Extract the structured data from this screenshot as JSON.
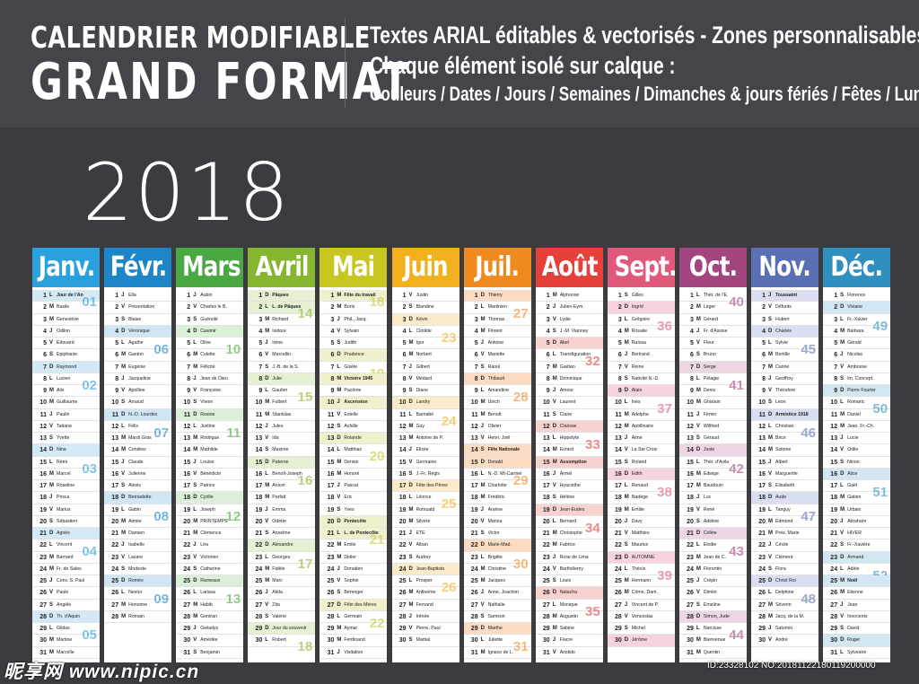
{
  "header": {
    "line1": "CALENDRIER MODIFIABLE",
    "line2": "GRAND FORMAT",
    "right1": "Textes ARIAL éditables & vectorisés  -  Zones personnalisables",
    "right2": "Chaque élément isolé sur calque :",
    "right3": "Couleurs / Dates / Jours / Semaines / Dimanches & jours fériés / Fêtes / Lunes"
  },
  "year": "2018",
  "watermark_left": "昵享网 www.nipic.cn",
  "watermark_right": "ID:23328102 NO:20181122180119200000",
  "months": [
    {
      "name": "Janv.",
      "color": "#2aa0dc",
      "light": "#d3eaf6",
      "start": 1,
      "days": 31,
      "sundays": [
        7,
        14,
        21,
        28
      ],
      "weeks": {
        "1": "01",
        "8": "02",
        "15": "03",
        "22": "04",
        "29": "05"
      },
      "saints": {
        "1": "Jour de l'An",
        "2": "Basile",
        "3": "Geneviève",
        "4": "Odilon",
        "5": "Edouard",
        "6": "Epiphanie",
        "7": "Raymond",
        "8": "Lucien",
        "9": "Alix",
        "10": "Guillaume",
        "11": "Paulin",
        "12": "Tatiana",
        "13": "Yvette",
        "14": "Nina",
        "15": "Rémi",
        "16": "Marcel",
        "17": "Roseline",
        "18": "Prisca",
        "19": "Marius",
        "20": "Sébastien",
        "21": "Agnès",
        "22": "Vincent",
        "23": "Barnard",
        "24": "Fr. de Sales",
        "25": "Conv. S. Paul",
        "26": "Paule",
        "27": "Angèle",
        "28": "Th. d'Aquin",
        "29": "Gildas",
        "30": "Martine",
        "31": "Marcelle"
      }
    },
    {
      "name": "Févr.",
      "color": "#1d86c9",
      "light": "#d1e6f3",
      "start": 4,
      "days": 28,
      "sundays": [
        4,
        11,
        18,
        25
      ],
      "weeks": {
        "5": "06",
        "12": "07",
        "19": "08",
        "26": "09"
      },
      "saints": {
        "1": "Ella",
        "2": "Présentation",
        "3": "Blaise",
        "4": "Véronique",
        "5": "Agathe",
        "6": "Gaston",
        "7": "Eugénie",
        "8": "Jacqueline",
        "9": "Apolline",
        "10": "Arnaud",
        "11": "N.-D. Lourdes",
        "12": "Félix",
        "13": "Mardi Gras",
        "14": "Cendres",
        "15": "Claude",
        "16": "Julienne",
        "17": "Alexis",
        "18": "Bernadette",
        "19": "Gabin",
        "20": "Aimée",
        "21": "Damien",
        "22": "Isabelle",
        "23": "Lazare",
        "24": "Modeste",
        "25": "Roméo",
        "26": "Nestor",
        "27": "Honorine",
        "28": "Romain"
      }
    },
    {
      "name": "Mars",
      "color": "#4aa843",
      "light": "#dcefd9",
      "start": 4,
      "days": 31,
      "sundays": [
        4,
        11,
        18,
        25
      ],
      "weeks": {
        "5": "10",
        "12": "11",
        "19": "12",
        "26": "13"
      },
      "saints": {
        "1": "Aubin",
        "2": "Charles le B.",
        "3": "Guénolé",
        "4": "Casimir",
        "5": "Olive",
        "6": "Colette",
        "7": "Félicité",
        "8": "Jean de Dieu",
        "9": "Françoise",
        "10": "Vivien",
        "11": "Rosine",
        "12": "Justine",
        "13": "Rodrigue",
        "14": "Mathilde",
        "15": "Louise",
        "16": "Bénédicte",
        "17": "Patrice",
        "18": "Cyrille",
        "19": "Joseph",
        "20": "PRINTEMPS",
        "21": "Clémence",
        "22": "Léa",
        "23": "Victorien",
        "24": "Catherine",
        "25": "Rameaux",
        "26": "Larissa",
        "27": "Habib",
        "28": "Gontran",
        "29": "Gwladys",
        "30": "Amédée",
        "31": "Benjamin"
      }
    },
    {
      "name": "Avril",
      "color": "#86b630",
      "light": "#e6f0d2",
      "start": 7,
      "days": 30,
      "sundays": [
        1,
        8,
        15,
        22,
        29
      ],
      "weeks": {
        "2": "14",
        "9": "15",
        "16": "16",
        "23": "17",
        "30": "18"
      },
      "saints": {
        "1": "Pâques",
        "2": "L. de Pâques",
        "3": "Richard",
        "4": "Isidore",
        "5": "Irène",
        "6": "Marcellin",
        "7": "J.-B. de la S.",
        "8": "Julie",
        "9": "Gautier",
        "10": "Fulbert",
        "11": "Stanislas",
        "12": "Jules",
        "13": "Ida",
        "14": "Maxime",
        "15": "Paterne",
        "16": "Benoît-Joseph",
        "17": "Anicet",
        "18": "Parfait",
        "19": "Emma",
        "20": "Odette",
        "21": "Anselme",
        "22": "Alexandre",
        "23": "Georges",
        "24": "Fidèle",
        "25": "Marc",
        "26": "Alida",
        "27": "Zita",
        "28": "Valérie",
        "29": "Jour du souvenir",
        "30": "Robert"
      }
    },
    {
      "name": "Mai",
      "color": "#c8c722",
      "light": "#f1f0cc",
      "start": 2,
      "days": 31,
      "sundays": [
        6,
        13,
        20,
        27
      ],
      "weeks": {
        "1": "18",
        "7": "19",
        "14": "20",
        "21": "21",
        "28": "22"
      },
      "saints": {
        "1": "Fête du travail",
        "2": "Boris",
        "3": "Phil., Jacq.",
        "4": "Sylvain",
        "5": "Judith",
        "6": "Prudence",
        "7": "Gisèle",
        "8": "Victoire 1945",
        "9": "Pacôme",
        "10": "Ascension",
        "11": "Estelle",
        "12": "Achille",
        "13": "Rolande",
        "14": "Matthias",
        "15": "Denise",
        "16": "Honoré",
        "17": "Pascal",
        "18": "Eric",
        "19": "Yves",
        "20": "Pentecôte",
        "21": "L. de Pentecôte",
        "22": "Emile",
        "23": "Didier",
        "24": "Donatien",
        "25": "Sophie",
        "26": "Bérenger",
        "27": "Fête des Mères",
        "28": "Germain",
        "29": "Aymar",
        "30": "Ferdinand",
        "31": "Visitation"
      }
    },
    {
      "name": "Juin",
      "color": "#f2b01e",
      "light": "#fcebc8",
      "start": 5,
      "days": 30,
      "sundays": [
        3,
        10,
        17,
        24
      ],
      "weeks": {
        "4": "23",
        "11": "24",
        "18": "25",
        "25": "26"
      },
      "saints": {
        "1": "Justin",
        "2": "Blandine",
        "3": "Kévin",
        "4": "Clotilde",
        "5": "Igor",
        "6": "Norbert",
        "7": "Gilbert",
        "8": "Médard",
        "9": "Diane",
        "10": "Landry",
        "11": "Barnabé",
        "12": "Guy",
        "13": "Antoine de P.",
        "14": "Elisée",
        "15": "Germaine",
        "16": "J.-Fr. Régis",
        "17": "Fête des Pères",
        "18": "Léonce",
        "19": "Romuald",
        "20": "Silvère",
        "21": "ETE",
        "22": "Alban",
        "23": "Audrey",
        "24": "Jean-Baptiste",
        "25": "Prosper",
        "26": "Anthelme",
        "27": "Fernand",
        "28": "Irénée",
        "29": "Pierre, Paul",
        "30": "Martial"
      }
    },
    {
      "name": "Juil.",
      "color": "#ef8a1f",
      "light": "#fbdcc2",
      "start": 7,
      "days": 31,
      "sundays": [
        1,
        8,
        15,
        22,
        29
      ],
      "weeks": {
        "2": "27",
        "9": "28",
        "16": "29",
        "23": "30",
        "30": "31"
      },
      "saints": {
        "1": "Thierry",
        "2": "Martinien",
        "3": "Thomas",
        "4": "Florent",
        "5": "Antoine",
        "6": "Mariette",
        "7": "Raoul",
        "8": "Thibault",
        "9": "Amandine",
        "10": "Ulrich",
        "11": "Benoît",
        "12": "Olivier",
        "13": "Henri, Joël",
        "14": "Fête Nationale",
        "15": "Donald",
        "16": "N.-D. Mt-Carmel",
        "17": "Charlotte",
        "18": "Frédéric",
        "19": "Arsène",
        "20": "Marina",
        "21": "Victor",
        "22": "Marie-Mad.",
        "23": "Brigitte",
        "24": "Christine",
        "25": "Jacques",
        "26": "Anne, Joachim",
        "27": "Nathalie",
        "28": "Samson",
        "29": "Marthe",
        "30": "Juliette",
        "31": "Ignace de L."
      }
    },
    {
      "name": "Août",
      "color": "#e5403a",
      "light": "#f8d2cf",
      "start": 3,
      "days": 31,
      "sundays": [
        5,
        12,
        19,
        26
      ],
      "weeks": {
        "6": "32",
        "13": "33",
        "20": "34",
        "27": "35"
      },
      "saints": {
        "1": "Alphonse",
        "2": "Julien-Eym.",
        "3": "Lydie",
        "4": "J.-M. Vianney",
        "5": "Abel",
        "6": "Transfiguration",
        "7": "Gaétan",
        "8": "Dominique",
        "9": "Amour",
        "10": "Laurent",
        "11": "Claire",
        "12": "Clarisse",
        "13": "Hippolyte",
        "14": "Evrard",
        "15": "Assomption",
        "16": "Armel",
        "17": "Hyacinthe",
        "18": "Hélène",
        "19": "Jean-Eudes",
        "20": "Bernard",
        "21": "Christophe",
        "22": "Fabrice",
        "23": "Rose de Lima",
        "24": "Barthélemy",
        "25": "Louis",
        "26": "Natacha",
        "27": "Monique",
        "28": "Augustin",
        "29": "Sabine",
        "30": "Fiacre",
        "31": "Aristide"
      }
    },
    {
      "name": "Sept.",
      "color": "#e0587a",
      "light": "#f7d4dd",
      "start": 6,
      "days": 30,
      "sundays": [
        2,
        9,
        16,
        23,
        30
      ],
      "weeks": {
        "3": "36",
        "10": "37",
        "17": "38",
        "24": "39"
      },
      "saints": {
        "1": "Gilles",
        "2": "Ingrid",
        "3": "Grégoire",
        "4": "Rosalie",
        "5": "Raïssa",
        "6": "Bertrand",
        "7": "Reine",
        "8": "Nativité N.-D.",
        "9": "Alain",
        "10": "Inès",
        "11": "Adelphe",
        "12": "Apollinaire",
        "13": "Aimé",
        "14": "La Ste Croix",
        "15": "Roland",
        "16": "Edith",
        "17": "Renaud",
        "18": "Nadège",
        "19": "Emilie",
        "20": "Davy",
        "21": "Matthieu",
        "22": "Maurice",
        "23": "AUTOMNE",
        "24": "Thècle",
        "25": "Hermann",
        "26": "Côme, Dam.",
        "27": "Vincent de P.",
        "28": "Venceslas",
        "29": "Michel",
        "30": "Jérôme"
      }
    },
    {
      "name": "Oct.",
      "color": "#a3457f",
      "light": "#ecd6e3",
      "start": 1,
      "days": 31,
      "sundays": [
        7,
        14,
        21,
        28
      ],
      "weeks": {
        "1": "40",
        "8": "41",
        "15": "42",
        "22": "43",
        "29": "44"
      },
      "saints": {
        "1": "Thér. de l'E.",
        "2": "Léger",
        "3": "Gérard",
        "4": "Fr. d'Assise",
        "5": "Fleur",
        "6": "Bruno",
        "7": "Serge",
        "8": "Pélagie",
        "9": "Denis",
        "10": "Ghislain",
        "11": "Firmin",
        "12": "Wilfried",
        "13": "Géraud",
        "14": "Juste",
        "15": "Thér. d'Avila",
        "16": "Edwige",
        "17": "Baudouin",
        "18": "Luc",
        "19": "René",
        "20": "Adeline",
        "21": "Céline",
        "22": "Elodie",
        "23": "Jean de C.",
        "24": "Florentin",
        "25": "Crépin",
        "26": "Dimitri",
        "27": "Emeline",
        "28": "Simon, Jude",
        "29": "Narcisse",
        "30": "Bienvenue",
        "31": "Quentin"
      }
    },
    {
      "name": "Nov.",
      "color": "#5b6fb5",
      "light": "#d9def0",
      "start": 4,
      "days": 30,
      "sundays": [
        4,
        11,
        18,
        25
      ],
      "weeks": {
        "5": "45",
        "12": "46",
        "19": "47",
        "26": "48"
      },
      "saints": {
        "1": "Toussaint",
        "2": "Défunts",
        "3": "Hubert",
        "4": "Charles",
        "5": "Sylvie",
        "6": "Bertille",
        "7": "Carine",
        "8": "Geoffroy",
        "9": "Théodore",
        "10": "Léon",
        "11": "Armistice 1918",
        "12": "Christian",
        "13": "Brice",
        "14": "Sidoine",
        "15": "Albert",
        "16": "Marguerite",
        "17": "Elisabeth",
        "18": "Aude",
        "19": "Tanguy",
        "20": "Edmond",
        "21": "Prés. Marie",
        "22": "Cécile",
        "23": "Clément",
        "24": "Flora",
        "25": "Christ Roi",
        "26": "Delphine",
        "27": "Séverin",
        "28": "Jacq. de la M.",
        "29": "Saturnin",
        "30": "André"
      }
    },
    {
      "name": "Déc.",
      "color": "#2f8fbf",
      "light": "#d2e7f2",
      "start": 6,
      "days": 31,
      "sundays": [
        2,
        9,
        16,
        23,
        30
      ],
      "weeks": {
        "3": "49",
        "10": "50",
        "17": "51",
        "24": "52"
      },
      "saints": {
        "1": "Florence",
        "2": "Viviane",
        "3": "Fr.-Xavier",
        "4": "Barbara",
        "5": "Gérald",
        "6": "Nicolas",
        "7": "Ambroise",
        "8": "Im. Concept.",
        "9": "Pierre Fourier",
        "10": "Romaric",
        "11": "Daniel",
        "12": "Jean. Fr.-Ch.",
        "13": "Lucie",
        "14": "Odile",
        "15": "Ninon",
        "16": "Alice",
        "17": "Gaël",
        "18": "Gatien",
        "19": "Urbain",
        "20": "Abraham",
        "21": "HIVER",
        "22": "Fr.-Xavière",
        "23": "Armand",
        "24": "Adèle",
        "25": "Noël",
        "26": "Etienne",
        "27": "Jean",
        "28": "Innocents",
        "29": "David",
        "30": "Roger",
        "31": "Sylvestre"
      }
    }
  ],
  "day_letters": [
    "L",
    "M",
    "M",
    "J",
    "V",
    "S",
    "D"
  ],
  "holidays": {
    "0": [
      1
    ],
    "3": [
      1,
      2
    ],
    "4": [
      1,
      8,
      10,
      20,
      21
    ],
    "6": [
      14
    ],
    "7": [
      15
    ],
    "10": [
      1,
      11
    ],
    "11": [
      25
    ]
  }
}
